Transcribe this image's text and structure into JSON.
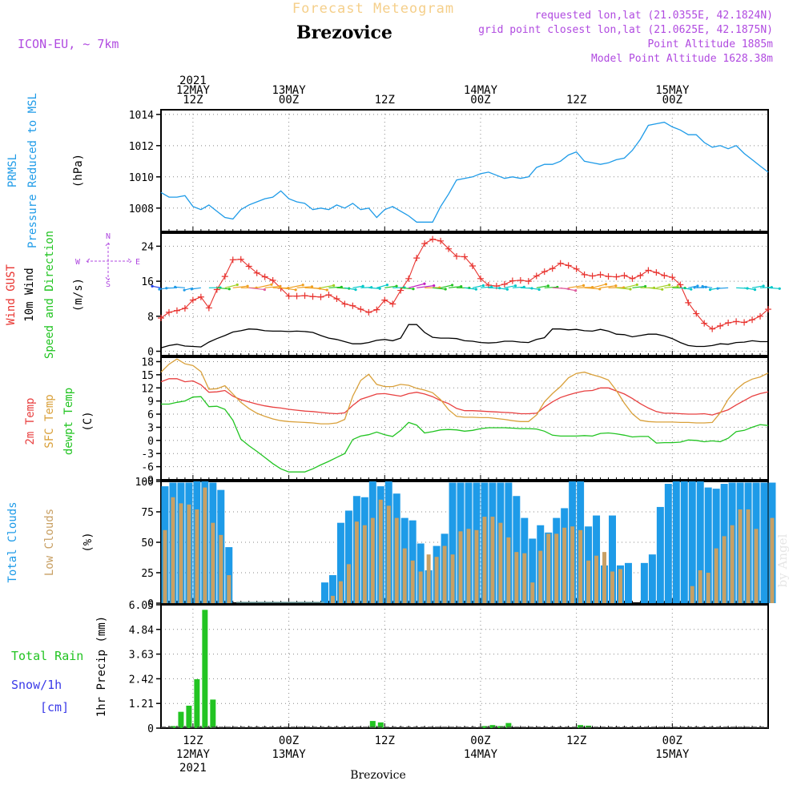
{
  "header": {
    "product_title": "Forecast Meteogram",
    "location": "Brezovice",
    "model": "ICON-EU, ~ 7km",
    "requested": "requested lon,lat (21.0355E, 42.1824N)",
    "grid_point": "grid point closest lon,lat (21.0625E, 42.1875N)",
    "point_altitude": "Point Altitude 1885m",
    "model_altitude": "Model Point Altitude 1628.38m",
    "footer_location": "Brezovice",
    "watermark": "by Angel"
  },
  "colors": {
    "pressure": "#1e9be8",
    "gust": "#e8322e",
    "wind": "#000000",
    "t2m": "#e84040",
    "tsfc": "#d9a03a",
    "dewpt": "#22c422",
    "total_clouds": "#1e9be8",
    "low_clouds": "#c8a064",
    "rain": "#22c422",
    "snow": "#3a3ae8",
    "header_title": "#f5cf8a",
    "header_info": "#b04ae0",
    "compass": "#b04ae0"
  },
  "time_axis": {
    "top_labels": [
      {
        "idx": 4,
        "lines": [
          "2021",
          "12MAY",
          "12Z"
        ]
      },
      {
        "idx": 16,
        "lines": [
          "13MAY",
          "00Z"
        ]
      },
      {
        "idx": 28,
        "lines": [
          "12Z"
        ]
      },
      {
        "idx": 40,
        "lines": [
          "14MAY",
          "00Z"
        ]
      },
      {
        "idx": 52,
        "lines": [
          "12Z"
        ]
      },
      {
        "idx": 64,
        "lines": [
          "15MAY",
          "00Z"
        ]
      }
    ],
    "bottom_labels": [
      {
        "idx": 4,
        "lines": [
          "12Z",
          "12MAY",
          "2021"
        ]
      },
      {
        "idx": 16,
        "lines": [
          "00Z",
          "13MAY"
        ]
      },
      {
        "idx": 28,
        "lines": [
          "12Z"
        ]
      },
      {
        "idx": 40,
        "lines": [
          "00Z",
          "14MAY"
        ]
      },
      {
        "idx": 52,
        "lines": [
          "12Z"
        ]
      },
      {
        "idx": 64,
        "lines": [
          "00Z",
          "15MAY"
        ]
      }
    ],
    "hours_total": 76
  },
  "chart_data": [
    {
      "id": "pressure",
      "type": "line",
      "title": "PRMSL Pressure Reduced to MSL",
      "label_lines": [
        "PRMSL",
        "Pressure Reduced to MSL"
      ],
      "ylabel": "(hPa)",
      "ylim": [
        1006.5,
        1014.3
      ],
      "yticks": [
        1008,
        1010,
        1012,
        1014
      ],
      "x": "hour index 0-76 (1h steps from 08Z 12MAY)",
      "series": [
        {
          "name": "PRMSL",
          "values": [
            1009.0,
            1008.7,
            1008.7,
            1008.8,
            1008.1,
            1007.9,
            1008.2,
            1007.8,
            1007.4,
            1007.3,
            1007.9,
            1008.2,
            1008.4,
            1008.6,
            1008.7,
            1009.1,
            1008.6,
            1008.4,
            1008.3,
            1007.9,
            1008.0,
            1007.9,
            1008.2,
            1008.0,
            1008.3,
            1007.9,
            1008.0,
            1007.4,
            1007.9,
            1008.1,
            1007.8,
            1007.5,
            1007.1,
            1007.1,
            1007.1,
            1008.1,
            1008.9,
            1009.8,
            1009.9,
            1010.0,
            1010.2,
            1010.3,
            1010.1,
            1009.9,
            1010.0,
            1009.9,
            1010.0,
            1010.6,
            1010.8,
            1010.8,
            1011.0,
            1011.4,
            1011.6,
            1011.0,
            1010.9,
            1010.8,
            1010.9,
            1011.1,
            1011.2,
            1011.7,
            1012.4,
            1013.3,
            1013.4,
            1013.5,
            1013.2,
            1013.0,
            1012.7,
            1012.7,
            1012.2,
            1011.9,
            1012.0,
            1011.8,
            1012.0,
            1011.5,
            1011.1,
            1010.7,
            1010.3
          ]
        }
      ]
    },
    {
      "id": "wind",
      "type": "line",
      "title": "Wind GUST / 10m Wind Speed and Direction",
      "label_lines": [
        "Wind GUST",
        "10m Wind",
        "Speed and Direction"
      ],
      "ylabel": "(m/s)",
      "ylim": [
        -1,
        27
      ],
      "yticks": [
        0,
        8,
        16,
        24
      ],
      "compass": [
        "N",
        "S",
        "W",
        "E"
      ],
      "series": [
        {
          "name": "Wind GUST",
          "values": [
            7.6,
            8.9,
            9.3,
            9.8,
            11.7,
            12.4,
            9.9,
            14.1,
            17.1,
            20.9,
            21.0,
            19.4,
            17.9,
            17.0,
            16.2,
            14.4,
            12.6,
            12.6,
            12.7,
            12.5,
            12.4,
            12.9,
            12.0,
            10.8,
            10.4,
            9.6,
            8.9,
            9.5,
            11.7,
            10.8,
            13.9,
            16.6,
            21.3,
            24.6,
            25.6,
            25.2,
            23.4,
            21.7,
            21.6,
            19.5,
            16.6,
            15.1,
            14.9,
            15.3,
            16.1,
            16.2,
            16.0,
            17.2,
            18.2,
            18.9,
            20.1,
            19.6,
            18.8,
            17.5,
            17.2,
            17.5,
            17.1,
            17.0,
            17.3,
            16.6,
            17.3,
            18.5,
            18.0,
            17.3,
            16.9,
            15.2,
            11.1,
            8.6,
            6.4,
            5.1,
            5.8,
            6.5,
            6.8,
            6.6,
            7.2,
            8.0,
            9.6
          ]
        },
        {
          "name": "10m Wind",
          "values": [
            0.8,
            1.3,
            1.6,
            1.2,
            1.1,
            1.0,
            2.1,
            2.9,
            3.6,
            4.4,
            4.7,
            5.1,
            5.0,
            4.7,
            4.6,
            4.6,
            4.5,
            4.6,
            4.5,
            4.3,
            3.6,
            3.0,
            2.7,
            2.2,
            1.7,
            1.7,
            2.0,
            2.5,
            2.7,
            2.4,
            3.0,
            6.1,
            6.1,
            4.3,
            3.2,
            3.0,
            3.0,
            2.9,
            2.4,
            2.3,
            2.0,
            1.9,
            2.0,
            2.3,
            2.3,
            2.1,
            2.0,
            2.7,
            3.1,
            5.1,
            5.1,
            4.9,
            5.0,
            4.7,
            4.6,
            5.0,
            4.6,
            3.9,
            3.8,
            3.3,
            3.6,
            3.9,
            3.9,
            3.5,
            2.9,
            2.0,
            1.3,
            1.1,
            1.1,
            1.3,
            1.7,
            1.6,
            2.0,
            2.1,
            2.4,
            2.2,
            2.2
          ]
        }
      ]
    },
    {
      "id": "temperature",
      "type": "line",
      "title": "2m Temp / SFC Temp / dewpt Temp",
      "label_lines": [
        "2m Temp",
        "SFC Temp",
        "dewpt Temp"
      ],
      "ylabel": "(C)",
      "ylim": [
        -9,
        19
      ],
      "yticks": [
        -9,
        -6,
        -3,
        0,
        3,
        6,
        9,
        12,
        15,
        18
      ],
      "series": [
        {
          "name": "2m Temp",
          "values": [
            13.4,
            14.1,
            14.1,
            13.4,
            13.6,
            12.7,
            11.0,
            11.1,
            11.4,
            10.1,
            9.3,
            8.8,
            8.3,
            7.9,
            7.6,
            7.4,
            7.1,
            6.9,
            6.7,
            6.6,
            6.4,
            6.2,
            6.1,
            6.3,
            8.0,
            9.4,
            10.0,
            10.6,
            10.7,
            10.4,
            10.1,
            10.7,
            11.0,
            10.6,
            10.0,
            9.1,
            8.4,
            7.3,
            6.8,
            6.8,
            6.7,
            6.6,
            6.5,
            6.4,
            6.3,
            6.1,
            6.1,
            6.2,
            7.6,
            8.8,
            9.8,
            10.4,
            10.9,
            11.3,
            11.4,
            12.0,
            12.0,
            11.3,
            10.6,
            9.6,
            8.4,
            7.4,
            6.6,
            6.2,
            6.2,
            6.1,
            6.0,
            6.0,
            6.1,
            5.8,
            6.4,
            7.0,
            8.1,
            9.1,
            10.1,
            10.7,
            11.1
          ]
        },
        {
          "name": "SFC Temp",
          "values": [
            15.6,
            17.4,
            18.6,
            17.5,
            17.1,
            15.7,
            11.7,
            11.8,
            12.5,
            10.6,
            8.7,
            7.3,
            6.2,
            5.5,
            4.9,
            4.5,
            4.3,
            4.2,
            4.1,
            4.0,
            3.8,
            3.8,
            4.0,
            4.8,
            10.1,
            13.7,
            15.1,
            12.8,
            12.3,
            12.3,
            12.8,
            12.6,
            11.9,
            11.5,
            10.9,
            9.3,
            7.0,
            5.5,
            5.3,
            5.3,
            5.2,
            5.2,
            5.0,
            4.8,
            4.5,
            4.3,
            4.3,
            5.8,
            8.8,
            10.7,
            12.3,
            14.3,
            15.3,
            15.6,
            15.0,
            14.5,
            13.8,
            11.4,
            8.5,
            6.1,
            4.6,
            4.3,
            4.2,
            4.2,
            4.2,
            4.1,
            4.1,
            4.0,
            4.0,
            4.1,
            6.3,
            9.4,
            11.6,
            13.1,
            14.0,
            14.5,
            15.4
          ]
        },
        {
          "name": "dewpt Temp",
          "values": [
            8.3,
            8.3,
            8.7,
            9.0,
            9.9,
            10.0,
            7.7,
            7.8,
            7.1,
            4.6,
            0.3,
            -1.2,
            -2.5,
            -3.9,
            -5.3,
            -6.5,
            -7.2,
            -7.2,
            -7.2,
            -6.5,
            -5.6,
            -4.8,
            -3.9,
            -3.0,
            0.2,
            1.0,
            1.3,
            1.9,
            1.3,
            0.9,
            2.3,
            4.1,
            3.5,
            1.7,
            2.0,
            2.4,
            2.5,
            2.4,
            2.1,
            2.3,
            2.7,
            2.9,
            2.9,
            2.9,
            2.8,
            2.7,
            2.7,
            2.6,
            2.1,
            1.2,
            1.0,
            1.0,
            1.0,
            1.1,
            1.0,
            1.6,
            1.7,
            1.5,
            1.2,
            0.8,
            0.9,
            0.9,
            -0.6,
            -0.5,
            -0.5,
            -0.4,
            0.1,
            0.0,
            -0.3,
            -0.1,
            -0.3,
            0.5,
            2.0,
            2.3,
            3.0,
            3.6,
            3.4
          ]
        }
      ]
    },
    {
      "id": "clouds",
      "type": "bar",
      "title": "Total Clouds / Low Clouds",
      "label_lines": [
        "Total Clouds",
        "Low Clouds"
      ],
      "ylabel": "(%)",
      "ylim": [
        0,
        100
      ],
      "yticks": [
        0,
        25,
        50,
        75,
        100
      ],
      "series": [
        {
          "name": "Total Clouds",
          "values": [
            96,
            99,
            99,
            99,
            100,
            100,
            99,
            93,
            46,
            0,
            0,
            0,
            0,
            0,
            0,
            0,
            0,
            0,
            0,
            0,
            17,
            23,
            66,
            76,
            88,
            87,
            100,
            96,
            100,
            90,
            70,
            68,
            49,
            27,
            47,
            57,
            99,
            99,
            99,
            99,
            99,
            99,
            99,
            99,
            88,
            70,
            53,
            64,
            58,
            70,
            78,
            100,
            100,
            63,
            72,
            31,
            72,
            31,
            33,
            0,
            33,
            40,
            79,
            98,
            100,
            100,
            100,
            100,
            95,
            94,
            98,
            99,
            99,
            99,
            99,
            99,
            99
          ]
        },
        {
          "name": "Low Clouds",
          "values": [
            60,
            87,
            82,
            81,
            77,
            95,
            66,
            56,
            23,
            0,
            0,
            0,
            0,
            0,
            0,
            0,
            0,
            0,
            0,
            0,
            0,
            6,
            18,
            32,
            67,
            64,
            70,
            85,
            80,
            70,
            45,
            35,
            26,
            40,
            38,
            47,
            40,
            59,
            61,
            60,
            71,
            71,
            66,
            54,
            42,
            41,
            17,
            43,
            57,
            57,
            62,
            63,
            60,
            35,
            39,
            42,
            26,
            28,
            0,
            0,
            0,
            0,
            0,
            0,
            0,
            0,
            14,
            27,
            25,
            45,
            55,
            64,
            77,
            77,
            61,
            0,
            70
          ]
        }
      ]
    },
    {
      "id": "precip",
      "type": "bar",
      "title": "Total Rain / Snow 1h",
      "label_lines": [
        "Total  Rain",
        "Snow/1h",
        "[cm]"
      ],
      "ylabel": "1hr Precip (mm)",
      "ylim": [
        0,
        6.05
      ],
      "yticks": [
        0,
        1.21,
        2.42,
        3.63,
        4.84,
        6.05
      ],
      "series": [
        {
          "name": "Total Rain",
          "values": [
            0,
            0.1,
            0.8,
            1.1,
            2.4,
            5.8,
            1.4,
            0,
            0,
            0,
            0,
            0,
            0,
            0,
            0,
            0,
            0,
            0,
            0,
            0,
            0,
            0,
            0,
            0,
            0,
            0,
            0.35,
            0.28,
            0,
            0,
            0,
            0,
            0,
            0,
            0,
            0,
            0,
            0,
            0,
            0,
            0.1,
            0.15,
            0.1,
            0.25,
            0,
            0,
            0,
            0,
            0,
            0,
            0,
            0,
            0.15,
            0.12,
            0,
            0,
            0,
            0,
            0,
            0,
            0,
            0,
            0,
            0,
            0,
            0,
            0,
            0,
            0,
            0,
            0,
            0,
            0,
            0,
            0,
            0,
            0
          ]
        }
      ]
    }
  ]
}
